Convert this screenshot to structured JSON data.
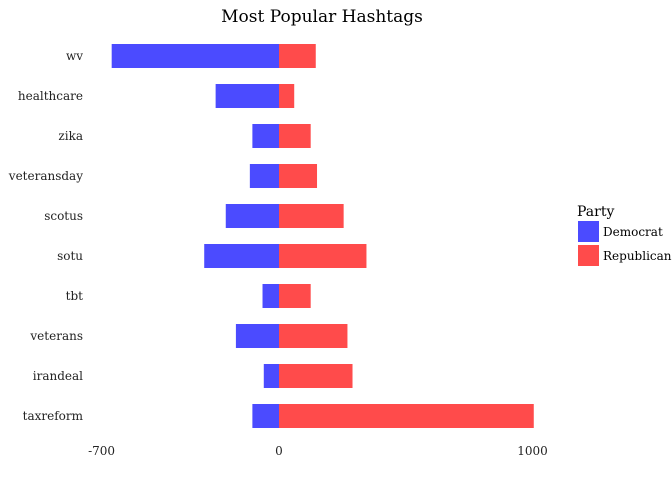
{
  "chart_data": {
    "type": "bar",
    "orientation": "horizontal",
    "stacked": "diverging",
    "title": "Most Popular Hashtags",
    "xlabel": "",
    "ylabel": "",
    "categories": [
      "wv",
      "healthcare",
      "zika",
      "veteransday",
      "scotus",
      "sotu",
      "tbt",
      "veterans",
      "irandeal",
      "taxreform"
    ],
    "series": [
      {
        "name": "Democrat",
        "color": "#4b4bff",
        "values": [
          -660,
          -250,
          -105,
          -115,
          -210,
          -295,
          -65,
          -170,
          -60,
          -105
        ]
      },
      {
        "name": "Republican",
        "color": "#ff4b4b",
        "values": [
          145,
          60,
          125,
          150,
          255,
          345,
          125,
          270,
          290,
          1005
        ]
      }
    ],
    "xlim": [
      -700,
      1000
    ],
    "xticks": [
      -700,
      0,
      1000
    ],
    "xtick_labels": [
      "-700",
      "0",
      "1000"
    ],
    "grid": false,
    "legend": {
      "title": "Party",
      "position": "right",
      "entries": [
        "Democrat",
        "Republican"
      ]
    }
  }
}
